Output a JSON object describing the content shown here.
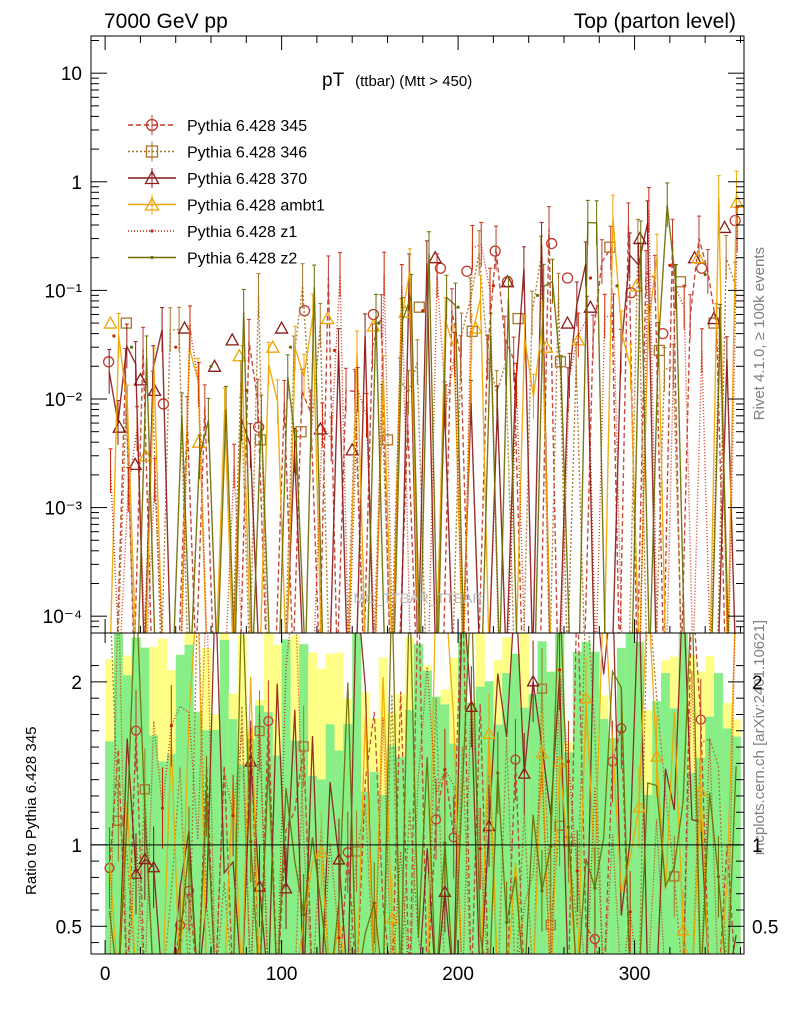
{
  "header": {
    "left": "7000 GeV pp",
    "right": "Top (parton level)"
  },
  "side": {
    "rivet": "Rivet 4.1.0, ≥ 100k events",
    "mcplots": "mcplots.cern.ch [arXiv:2401.10621]"
  },
  "watermark": "MC_TTBAR_TTBAR",
  "colors": {
    "s345": "#c0392b",
    "s346": "#a8752a",
    "s370": "#8b1a1a",
    "ambt1": "#f0a500",
    "z1": "#cc2200",
    "z2": "#6b6b00",
    "band_yellow": "#ffff88",
    "band_green": "#88ee88"
  },
  "chart_data": {
    "type": "line",
    "title": "pT",
    "title_sub": "(ttbar) (Mtt > 450)",
    "xlabel": "",
    "ylabel_ratio": "Ratio to Pythia 6.428 345",
    "xlim": [
      -8,
      362
    ],
    "ylim_log": [
      7e-05,
      22
    ],
    "ylim_ratio": [
      0.33,
      2.3
    ],
    "xticks": [
      0,
      100,
      200,
      300
    ],
    "yticks_main": [
      {
        "value": 10,
        "label": "10"
      },
      {
        "value": 1,
        "label": "1"
      },
      {
        "value": 0.1,
        "label": "10⁻¹"
      },
      {
        "value": 0.01,
        "label": "10⁻²"
      },
      {
        "value": 0.001,
        "label": "10⁻³"
      },
      {
        "value": 0.0001,
        "label": "10⁻⁴"
      }
    ],
    "yticks_ratio": [
      {
        "value": 2,
        "label": "2"
      },
      {
        "value": 1,
        "label": "1"
      },
      {
        "value": 0.5,
        "label": "0.5"
      }
    ],
    "n_bins": 72,
    "bin_width": 5,
    "series": [
      {
        "name": "Pythia 6.428 345",
        "key": "s345",
        "marker": "circle",
        "dash": "5,3",
        "points": [
          [
            2,
            0.022
          ],
          [
            33,
            0.009
          ],
          [
            87,
            0.0055
          ],
          [
            113,
            0.065
          ],
          [
            152,
            0.06
          ],
          [
            190,
            0.16
          ],
          [
            205,
            0.15
          ],
          [
            221,
            0.23
          ],
          [
            228,
            0.12
          ],
          [
            253,
            0.27
          ],
          [
            262,
            0.13
          ],
          [
            298,
            0.095
          ],
          [
            316,
            0.04
          ],
          [
            338,
            0.16
          ],
          [
            357,
            0.44
          ]
        ]
      },
      {
        "name": "Pythia 6.428 346",
        "key": "s346",
        "marker": "square",
        "dash": "2,2",
        "points": [
          [
            12,
            0.05
          ],
          [
            88,
            0.0042
          ],
          [
            111,
            0.005
          ],
          [
            160,
            0.0042
          ],
          [
            178,
            0.07
          ],
          [
            208,
            0.042
          ],
          [
            234,
            0.055
          ],
          [
            258,
            0.022
          ],
          [
            286,
            0.25
          ],
          [
            314,
            0.028
          ],
          [
            326,
            0.12
          ],
          [
            345,
            0.05
          ]
        ]
      },
      {
        "name": "Pythia 6.428 370",
        "key": "s370",
        "marker": "triangle",
        "dash": "",
        "points": [
          [
            8,
            0.0055
          ],
          [
            17,
            0.0025
          ],
          [
            20,
            0.015
          ],
          [
            28,
            0.012
          ],
          [
            45,
            0.045
          ],
          [
            62,
            0.02
          ],
          [
            72,
            0.035
          ],
          [
            100,
            0.045
          ],
          [
            122,
            0.0053
          ],
          [
            140,
            0.0034
          ],
          [
            187,
            0.2
          ],
          [
            228,
            0.12
          ],
          [
            262,
            0.05
          ],
          [
            275,
            0.07
          ],
          [
            303,
            0.3
          ],
          [
            334,
            0.2
          ],
          [
            345,
            0.055
          ],
          [
            351,
            0.38
          ]
        ]
      },
      {
        "name": "Pythia 6.428 ambt1",
        "key": "ambt1",
        "marker": "triangle",
        "dash": "",
        "points": [
          [
            3,
            0.05
          ],
          [
            23,
            0.003
          ],
          [
            53,
            0.004
          ],
          [
            76,
            0.025
          ],
          [
            95,
            0.03
          ],
          [
            126,
            0.055
          ],
          [
            152,
            0.047
          ],
          [
            170,
            0.063
          ],
          [
            210,
            0.045
          ],
          [
            250,
            0.03
          ],
          [
            268,
            0.035
          ],
          [
            301,
            0.11
          ],
          [
            336,
            0.2
          ],
          [
            358,
            0.65
          ]
        ]
      },
      {
        "name": "Pythia 6.428 z1",
        "key": "z1",
        "marker": "dot",
        "dash": "1,2",
        "points": [
          [
            5,
            0.038
          ],
          [
            40,
            0.03
          ],
          [
            80,
            0.012
          ],
          [
            130,
            0.028
          ],
          [
            180,
            0.065
          ],
          [
            220,
            0.11
          ],
          [
            275,
            0.13
          ],
          [
            320,
            0.17
          ]
        ]
      },
      {
        "name": "Pythia 6.428 z2",
        "key": "z2",
        "marker": "dot",
        "dash": "",
        "points": [
          [
            15,
            0.03
          ],
          [
            60,
            0.02
          ],
          [
            105,
            0.03
          ],
          [
            155,
            0.05
          ],
          [
            200,
            0.07
          ],
          [
            245,
            0.09
          ],
          [
            290,
            0.11
          ],
          [
            340,
            0.14
          ]
        ]
      }
    ]
  }
}
